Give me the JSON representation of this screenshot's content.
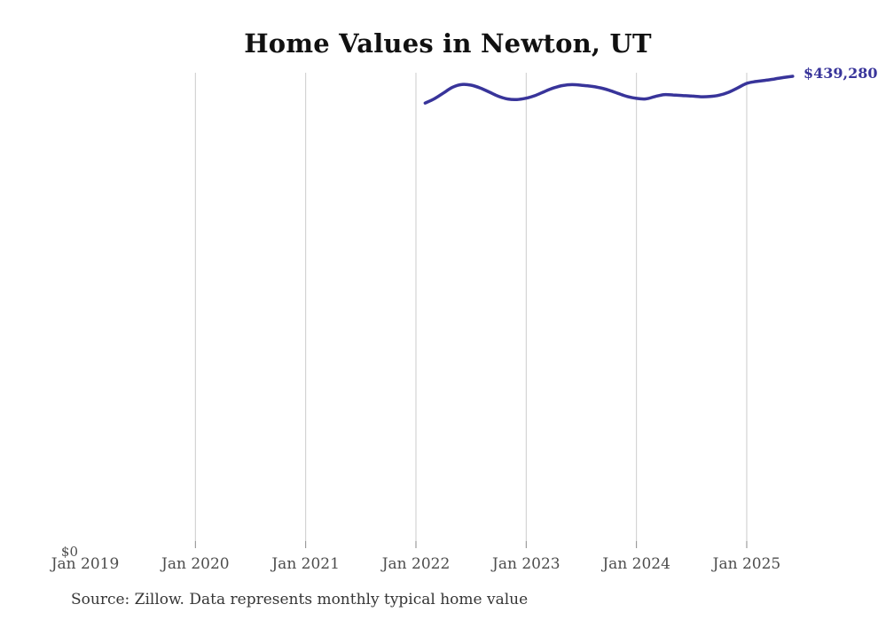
{
  "header": {
    "title": "Home Values in Newton, UT"
  },
  "annotations": {
    "latest_value": "$439,280",
    "y_zero": "$0"
  },
  "footer": {
    "source_note": "Source: Zillow. Data represents monthly typical home value"
  },
  "colors": {
    "line": "#38349a",
    "value_label": "#38349a",
    "gridline": "#cccccc",
    "tick": "#8a8a8a",
    "axis_text": "#4d4d4d",
    "title_text": "#111111",
    "source_text": "#363636"
  },
  "chart_data": {
    "type": "line",
    "title": "Home Values in Newton, UT",
    "xlabel": "",
    "ylabel": "",
    "unit": "USD",
    "ylim": [
      0,
      439280
    ],
    "grid": "vertical-yearly-gridlines",
    "legend": "none",
    "x_tick_labels": [
      "Jan 2019",
      "Jan 2020",
      "Jan 2021",
      "Jan 2022",
      "Jan 2023",
      "Jan 2024",
      "Jan 2025"
    ],
    "gridline_at": [
      "Jan 2020",
      "Jan 2021",
      "Jan 2022",
      "Jan 2023",
      "Jan 2024",
      "Jan 2025"
    ],
    "series": [
      {
        "name": "Monthly typical home value",
        "end_label": "$439,280",
        "months": [
          "Feb 2022",
          "Mar 2022",
          "Apr 2022",
          "May 2022",
          "Jun 2022",
          "Jul 2022",
          "Aug 2022",
          "Sep 2022",
          "Oct 2022",
          "Nov 2022",
          "Dec 2022",
          "Jan 2023",
          "Feb 2023",
          "Mar 2023",
          "Apr 2023",
          "May 2023",
          "Jun 2023",
          "Jul 2023",
          "Aug 2023",
          "Sep 2023",
          "Oct 2023",
          "Nov 2023",
          "Dec 2023",
          "Jan 2024",
          "Feb 2024",
          "Mar 2024",
          "Apr 2024",
          "May 2024",
          "Jun 2024",
          "Jul 2024",
          "Aug 2024",
          "Sep 2024",
          "Oct 2024",
          "Nov 2024",
          "Dec 2024",
          "Jan 2025",
          "Feb 2025",
          "Mar 2025",
          "Apr 2025",
          "May 2025",
          "Jun 2025"
        ],
        "values": [
          414000,
          418000,
          423500,
          429000,
          431600,
          430900,
          428200,
          424300,
          420300,
          417800,
          417300,
          418600,
          421200,
          424900,
          428300,
          430600,
          431400,
          430800,
          430000,
          428500,
          426100,
          423100,
          420200,
          418400,
          417900,
          420100,
          421900,
          421600,
          421100,
          420600,
          419900,
          420200,
          421400,
          424100,
          428200,
          432600,
          434300,
          435400,
          436700,
          438100,
          439280
        ]
      }
    ]
  }
}
